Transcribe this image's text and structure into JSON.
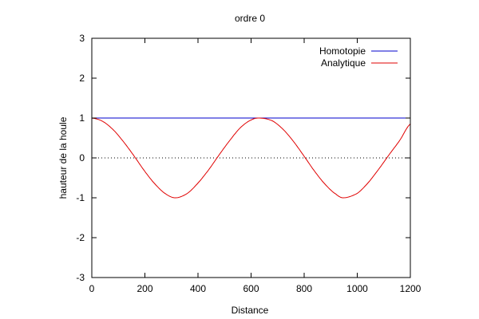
{
  "chart_data": {
    "type": "line",
    "title": "ordre 0",
    "xlabel": "Distance",
    "ylabel": "hauteur de la houle",
    "xlim": [
      0,
      1200
    ],
    "ylim": [
      -3,
      3
    ],
    "xticks": [
      0,
      200,
      400,
      600,
      800,
      1000,
      1200
    ],
    "yticks": [
      -3,
      -2,
      -1,
      0,
      1,
      2,
      3
    ],
    "zero_line": "dotted",
    "legend": "top-right",
    "series": [
      {
        "name": "Homotopie",
        "color": "#0000cc",
        "x": [
          0,
          1200
        ],
        "y": [
          1,
          1
        ]
      },
      {
        "name": "Analytique",
        "color": "#e00000",
        "x": [
          0,
          40,
          80,
          120,
          160,
          200,
          240,
          280,
          316,
          360,
          400,
          440,
          480,
          520,
          560,
          600,
          632,
          680,
          720,
          760,
          800,
          840,
          880,
          920,
          948,
          1000,
          1040,
          1080,
          1120,
          1160,
          1200
        ],
        "y": [
          1.0,
          0.92,
          0.71,
          0.4,
          0.04,
          -0.34,
          -0.67,
          -0.91,
          -1.0,
          -0.89,
          -0.63,
          -0.3,
          0.08,
          0.44,
          0.76,
          0.95,
          1.0,
          0.93,
          0.72,
          0.41,
          0.04,
          -0.34,
          -0.67,
          -0.91,
          -1.0,
          -0.89,
          -0.63,
          -0.29,
          0.08,
          0.44,
          0.85
        ]
      }
    ]
  }
}
